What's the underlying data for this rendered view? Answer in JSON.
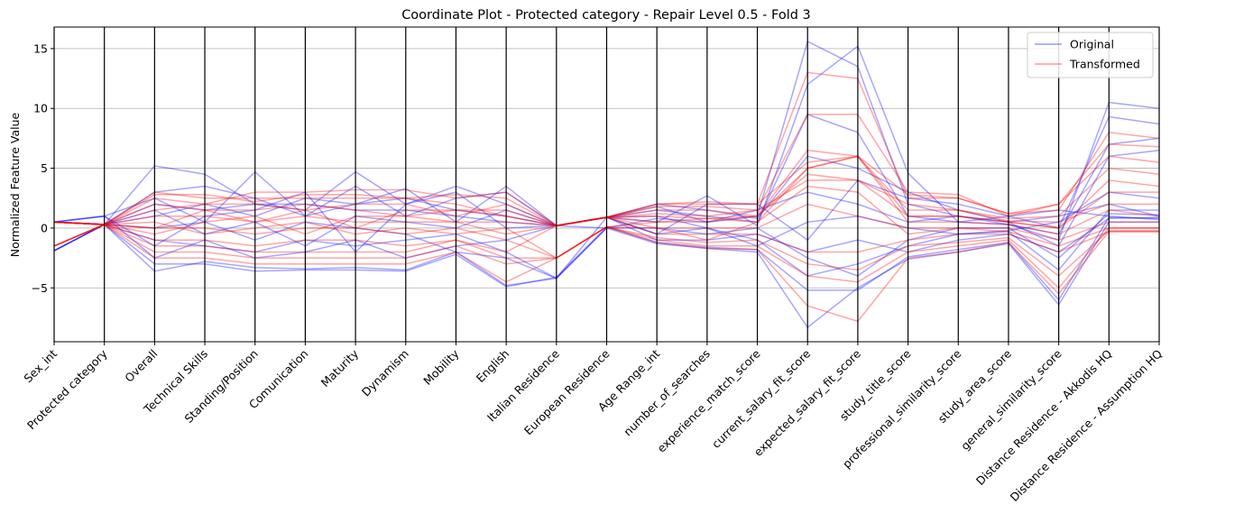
{
  "chart_data": {
    "type": "parallel-coordinates",
    "title": "Coordinate Plot - Protected category - Repair Level 0.5 - Fold 3",
    "ylabel": "Normalized Feature Value",
    "ylim": [
      -9.5,
      16.8
    ],
    "yticks": [
      -5,
      0,
      5,
      10,
      15
    ],
    "grid": "horizontal",
    "legend_placement": "top-right",
    "axes": [
      "Sex_int",
      "Protected category",
      "Overall",
      "Technical Skills",
      "Standing/Position",
      "Comunication",
      "Maturity",
      "Dynamism",
      "Mobility",
      "English",
      "Italian Residence",
      "European Residence",
      "Age Range_int",
      "number_of_searches",
      "experience_match_score",
      "current_salary_fit_score",
      "expected_salary_fit_score",
      "study_title_score",
      "professional_similarity_score",
      "study_area_score",
      "general_similarity_score",
      "Distance Residence - Akkodis HQ",
      "Distance Residence - Assumption HQ"
    ],
    "series": [
      {
        "name": "Original",
        "color": "#0000ff",
        "lines": [
          [
            0.5,
            0.3,
            5.2,
            4.5,
            2.0,
            1.5,
            4.7,
            2.0,
            3.5,
            2.0,
            0.2,
            0.9,
            1.8,
            0.5,
            1.0,
            15.6,
            13.5,
            2.0,
            1.0,
            0.3,
            -1.0,
            10.5,
            10.0
          ],
          [
            0.5,
            1.0,
            2.5,
            0.5,
            4.7,
            1.0,
            2.0,
            3.3,
            0.5,
            3.5,
            0.2,
            0.9,
            0.5,
            2.7,
            0.2,
            12.0,
            15.2,
            4.6,
            0.5,
            1.0,
            0.0,
            9.3,
            8.7
          ],
          [
            -1.9,
            0.3,
            -3.6,
            -2.8,
            -3.3,
            -3.4,
            -3.3,
            -3.5,
            -2.0,
            -4.8,
            -4.2,
            0.0,
            -1.3,
            -1.7,
            -2.0,
            -8.3,
            -5.0,
            -2.6,
            -2.0,
            -1.3,
            -6.4,
            0.5,
            0.5
          ],
          [
            -1.9,
            0.3,
            -3.0,
            -3.0,
            -3.6,
            -3.5,
            -3.5,
            -3.6,
            -2.2,
            -4.9,
            -4.1,
            0.1,
            -1.2,
            -1.6,
            -1.8,
            -5.2,
            -5.2,
            -2.4,
            -1.8,
            -1.2,
            -6.0,
            0.9,
            0.8
          ],
          [
            0.5,
            0.3,
            2.0,
            1.5,
            2.0,
            2.0,
            1.5,
            1.5,
            1.0,
            0.5,
            0.2,
            0.9,
            1.5,
            1.0,
            0.5,
            9.5,
            8.0,
            1.0,
            0.5,
            0.3,
            -0.5,
            7.0,
            7.5
          ],
          [
            0.5,
            0.3,
            -1.0,
            -1.5,
            -2.0,
            -1.0,
            -1.5,
            -1.0,
            -0.5,
            -2.0,
            -4.2,
            0.9,
            -0.5,
            0.0,
            -1.0,
            -4.0,
            -3.0,
            -1.5,
            -0.5,
            -0.3,
            -3.5,
            1.5,
            1.5
          ],
          [
            -1.9,
            0.3,
            1.0,
            2.0,
            1.0,
            2.5,
            2.0,
            2.5,
            1.5,
            1.0,
            0.2,
            0.0,
            0.8,
            0.5,
            1.5,
            3.0,
            2.0,
            0.5,
            1.0,
            0.5,
            1.0,
            2.0,
            1.0
          ],
          [
            0.5,
            1.0,
            -2.5,
            -1.0,
            -2.5,
            -2.0,
            -1.0,
            -2.5,
            -1.5,
            -1.0,
            0.2,
            0.9,
            -1.0,
            -1.0,
            -0.5,
            -2.0,
            -1.0,
            -2.0,
            -1.0,
            -0.5,
            -2.0,
            0.8,
            0.9
          ],
          [
            0.5,
            0.3,
            3.0,
            3.5,
            2.5,
            1.0,
            3.5,
            1.0,
            2.5,
            3.0,
            0.2,
            0.9,
            2.0,
            1.5,
            0.8,
            6.0,
            5.0,
            3.0,
            1.5,
            0.5,
            -1.5,
            6.0,
            6.5
          ],
          [
            -1.9,
            0.3,
            0.0,
            0.5,
            -1.0,
            0.5,
            0.0,
            -0.5,
            -2.0,
            -2.5,
            -4.2,
            0.0,
            0.0,
            -0.5,
            0.0,
            -2.5,
            -4.0,
            -1.0,
            0.0,
            0.0,
            -2.5,
            1.2,
            1.1
          ],
          [
            0.5,
            0.3,
            1.5,
            -0.5,
            0.5,
            -1.5,
            1.0,
            0.5,
            0.0,
            1.5,
            0.2,
            0.9,
            1.0,
            0.0,
            -1.5,
            0.5,
            1.0,
            0.0,
            -0.5,
            -0.2,
            0.5,
            3.0,
            2.5
          ],
          [
            0.5,
            1.0,
            -1.5,
            1.0,
            1.5,
            3.0,
            -2.0,
            2.0,
            3.0,
            0.0,
            0.2,
            0.9,
            -0.5,
            2.0,
            2.0,
            -1.0,
            4.0,
            2.5,
            2.0,
            1.0,
            1.5,
            1.0,
            0.7
          ]
        ]
      },
      {
        "name": "Transformed",
        "color": "#ff0000",
        "lines": [
          [
            0.5,
            0.3,
            3.0,
            2.5,
            2.5,
            2.5,
            2.5,
            2.5,
            2.0,
            1.0,
            0.2,
            0.9,
            2.0,
            2.0,
            2.0,
            13.0,
            12.5,
            2.5,
            2.5,
            1.2,
            1.5,
            8.0,
            7.5
          ],
          [
            0.5,
            0.3,
            2.5,
            2.0,
            3.0,
            3.0,
            3.2,
            3.2,
            2.5,
            3.0,
            0.2,
            0.9,
            1.8,
            1.8,
            1.5,
            9.5,
            9.5,
            3.0,
            2.8,
            1.0,
            2.0,
            7.0,
            6.8
          ],
          [
            -1.5,
            0.3,
            -2.5,
            -2.5,
            -3.0,
            -3.0,
            -3.0,
            -3.0,
            -2.0,
            -4.5,
            -2.5,
            0.1,
            -1.2,
            -1.7,
            -1.8,
            -6.5,
            -7.8,
            -2.5,
            -2.0,
            -1.2,
            -5.5,
            -0.3,
            -0.3
          ],
          [
            -1.5,
            0.3,
            -2.0,
            -2.0,
            -2.5,
            -2.5,
            -2.5,
            -2.5,
            -1.5,
            -3.0,
            -2.5,
            0.1,
            -1.0,
            -1.5,
            -1.5,
            -4.0,
            -4.5,
            -2.0,
            -1.5,
            -1.0,
            -5.0,
            0.0,
            0.0
          ],
          [
            0.5,
            0.3,
            2.0,
            1.5,
            1.5,
            2.0,
            1.5,
            1.0,
            1.5,
            1.5,
            0.2,
            0.9,
            1.5,
            1.5,
            1.0,
            6.5,
            6.0,
            1.5,
            1.5,
            0.8,
            1.0,
            5.0,
            4.5
          ],
          [
            0.5,
            0.3,
            1.0,
            1.0,
            0.5,
            1.0,
            0.5,
            0.5,
            0.5,
            0.5,
            0.2,
            0.9,
            1.0,
            0.8,
            0.5,
            5.0,
            6.0,
            1.0,
            1.0,
            0.5,
            0.0,
            3.0,
            3.0
          ],
          [
            -1.5,
            0.3,
            0.0,
            0.0,
            -0.5,
            0.0,
            0.0,
            -0.5,
            0.0,
            -1.0,
            -2.5,
            0.1,
            0.0,
            0.0,
            0.0,
            2.0,
            1.0,
            0.0,
            0.0,
            0.0,
            -1.0,
            0.5,
            0.5
          ],
          [
            0.5,
            0.3,
            -1.0,
            -1.0,
            -1.5,
            -1.0,
            -1.0,
            -1.5,
            -1.0,
            -2.0,
            0.2,
            0.9,
            -0.5,
            -0.5,
            -0.5,
            -2.0,
            -2.0,
            -1.0,
            -0.5,
            -0.5,
            -2.0,
            -0.3,
            -0.3
          ],
          [
            0.5,
            0.3,
            1.5,
            2.0,
            2.0,
            1.5,
            2.0,
            2.0,
            1.0,
            2.0,
            0.2,
            0.9,
            1.2,
            1.0,
            1.5,
            4.0,
            4.0,
            2.0,
            1.5,
            0.6,
            0.5,
            2.0,
            2.0
          ],
          [
            -1.5,
            0.3,
            0.5,
            -0.5,
            0.0,
            0.5,
            -0.5,
            0.0,
            -0.5,
            0.0,
            -2.5,
            0.1,
            0.5,
            0.5,
            1.0,
            5.0,
            6.0,
            0.5,
            0.5,
            0.3,
            -0.5,
            1.5,
            1.0
          ],
          [
            0.5,
            0.3,
            -0.5,
            0.5,
            1.0,
            -0.5,
            1.0,
            1.0,
            0.5,
            -0.5,
            0.2,
            0.9,
            0.0,
            -1.0,
            0.5,
            3.5,
            3.0,
            -0.5,
            0.0,
            -0.3,
            -1.5,
            0.0,
            0.0
          ],
          [
            0.5,
            0.3,
            2.8,
            2.8,
            2.2,
            2.8,
            2.8,
            2.5,
            2.8,
            2.5,
            0.2,
            0.9,
            2.0,
            2.2,
            2.0,
            5.5,
            6.0,
            2.8,
            2.5,
            1.2,
            2.0,
            6.0,
            5.5
          ],
          [
            -1.5,
            0.3,
            -1.5,
            -1.5,
            -2.0,
            -2.0,
            -2.0,
            -2.0,
            -1.0,
            -2.5,
            -2.5,
            0.1,
            -0.8,
            -1.2,
            -1.0,
            -3.0,
            -3.5,
            -1.5,
            -1.2,
            -0.8,
            -4.0,
            -0.2,
            -0.2
          ],
          [
            0.5,
            0.3,
            0.0,
            1.5,
            0.5,
            1.5,
            0.0,
            1.5,
            1.5,
            1.0,
            0.2,
            0.9,
            0.5,
            0.8,
            1.0,
            4.5,
            4.0,
            1.0,
            1.0,
            0.5,
            0.0,
            4.0,
            3.5
          ]
        ]
      }
    ]
  },
  "legend": [
    {
      "label": "Original",
      "color": "#0000ff"
    },
    {
      "label": "Transformed",
      "color": "#ff0000"
    }
  ]
}
